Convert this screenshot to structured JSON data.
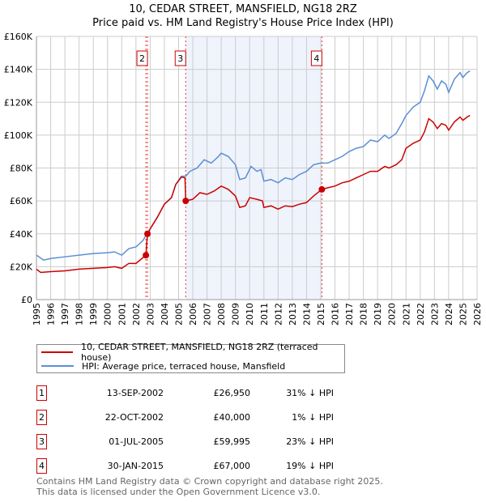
{
  "title": "10, CEDAR STREET, MANSFIELD, NG18 2RZ",
  "subtitle": "Price paid vs. HM Land Registry's House Price Index (HPI)",
  "colors": {
    "property": "#cc0000",
    "hpi": "#5b8fd4",
    "shade": "#eef3fc",
    "grid": "#cccccc"
  },
  "chart_data": {
    "type": "line",
    "title": "10, CEDAR STREET, MANSFIELD, NG18 2RZ",
    "xlim": [
      1995,
      2026
    ],
    "ylim": [
      0,
      160000
    ],
    "y_ticks": [
      {
        "v": 0,
        "label": "£0"
      },
      {
        "v": 20000,
        "label": "£20K"
      },
      {
        "v": 40000,
        "label": "£40K"
      },
      {
        "v": 60000,
        "label": "£60K"
      },
      {
        "v": 80000,
        "label": "£80K"
      },
      {
        "v": 100000,
        "label": "£100K"
      },
      {
        "v": 120000,
        "label": "£120K"
      },
      {
        "v": 140000,
        "label": "£140K"
      },
      {
        "v": 160000,
        "label": "£160K"
      }
    ],
    "x_ticks": [
      "1995",
      "1996",
      "1997",
      "1998",
      "1999",
      "2000",
      "2001",
      "2002",
      "2003",
      "2004",
      "2005",
      "2006",
      "2007",
      "2008",
      "2009",
      "2010",
      "2011",
      "2012",
      "2013",
      "2014",
      "2015",
      "2016",
      "2017",
      "2018",
      "2019",
      "2020",
      "2021",
      "2022",
      "2023",
      "2024",
      "2025",
      "2026"
    ],
    "shaded_range": [
      2005.5,
      2015.08
    ],
    "forecast_from": 2025.0,
    "series": [
      {
        "name": "10, CEDAR STREET, MANSFIELD, NG18 2RZ (terraced house)",
        "color": "#cc0000",
        "x": [
          1995,
          1995.3,
          1996,
          1997,
          1998,
          1999,
          2000,
          2000.5,
          2001,
          2001.5,
          2002,
          2002.7,
          2002.81,
          2003,
          2003.5,
          2004,
          2004.5,
          2004.8,
          2005.2,
          2005.45,
          2005.5,
          2006,
          2006.5,
          2007,
          2007.5,
          2008,
          2008.5,
          2009,
          2009.3,
          2009.7,
          2010,
          2010.5,
          2010.9,
          2011,
          2011.5,
          2012,
          2012.5,
          2013,
          2013.5,
          2014,
          2014.5,
          2015.08,
          2015.5,
          2016,
          2016.5,
          2017,
          2017.5,
          2018,
          2018.5,
          2019,
          2019.5,
          2019.8,
          2020.3,
          2020.7,
          2021,
          2021.5,
          2022,
          2022.3,
          2022.6,
          2022.9,
          2023.2,
          2023.5,
          2023.8,
          2024,
          2024.4,
          2024.8,
          2025,
          2025.3,
          2025.5
        ],
        "y": [
          18500,
          16500,
          17000,
          17500,
          18500,
          19000,
          19500,
          20000,
          19000,
          22000,
          22000,
          26950,
          40000,
          43000,
          50000,
          58000,
          62000,
          70000,
          74500,
          74000,
          59995,
          61000,
          65000,
          64000,
          66000,
          69000,
          67000,
          63000,
          56000,
          57000,
          62000,
          61000,
          60000,
          56000,
          57000,
          55000,
          57000,
          56500,
          58000,
          59000,
          63000,
          67000,
          68000,
          69000,
          71000,
          72000,
          74000,
          76000,
          78000,
          78000,
          81000,
          80000,
          82000,
          85000,
          92000,
          95000,
          97000,
          102000,
          110000,
          108000,
          104000,
          107000,
          106000,
          103000,
          108000,
          111000,
          109000,
          111000,
          112000
        ]
      },
      {
        "name": "HPI: Average price, terraced house, Mansfield",
        "color": "#5b8fd4",
        "x": [
          1995,
          1995.5,
          1996,
          1997,
          1998,
          1999,
          2000,
          2000.5,
          2001,
          2001.5,
          2002,
          2002.5,
          2002.8,
          2003,
          2003.5,
          2004,
          2004.5,
          2004.8,
          2005.2,
          2005.5,
          2005.8,
          2006.3,
          2006.8,
          2007.3,
          2007.8,
          2008,
          2008.5,
          2009,
          2009.3,
          2009.7,
          2010.1,
          2010.5,
          2010.8,
          2011,
          2011.5,
          2012,
          2012.5,
          2013,
          2013.5,
          2014,
          2014.5,
          2015,
          2015.5,
          2016,
          2016.5,
          2017,
          2017.5,
          2018,
          2018.5,
          2019,
          2019.5,
          2019.8,
          2020.3,
          2020.7,
          2021,
          2021.5,
          2022,
          2022.3,
          2022.6,
          2022.9,
          2023.2,
          2023.5,
          2023.8,
          2024,
          2024.4,
          2024.8,
          2025,
          2025.3,
          2025.5
        ],
        "y": [
          27000,
          24000,
          25000,
          26000,
          27000,
          28000,
          28500,
          29000,
          27000,
          31000,
          32000,
          36000,
          40500,
          43000,
          50000,
          58000,
          62000,
          70000,
          75000,
          75000,
          78000,
          80000,
          85000,
          83000,
          87000,
          89000,
          87000,
          82000,
          73000,
          74000,
          81000,
          78000,
          79000,
          72000,
          73000,
          71000,
          74000,
          73000,
          76000,
          78000,
          82000,
          83000,
          83000,
          85000,
          87000,
          90000,
          92000,
          93000,
          97000,
          96000,
          100000,
          98000,
          101000,
          107000,
          112000,
          117000,
          120000,
          127000,
          136000,
          133000,
          128000,
          133000,
          131000,
          126000,
          134000,
          138000,
          135000,
          138000,
          139000
        ]
      }
    ],
    "sales": [
      {
        "id": "1",
        "x": 2002.7,
        "y": 26950,
        "show_label": false
      },
      {
        "id": "2",
        "x": 2002.81,
        "y": 40000,
        "show_label": true
      },
      {
        "id": "3",
        "x": 2005.5,
        "y": 59995,
        "show_label": true
      },
      {
        "id": "4",
        "x": 2015.08,
        "y": 67000,
        "show_label": true
      }
    ]
  },
  "legend": {
    "property": "10, CEDAR STREET, MANSFIELD, NG18 2RZ (terraced house)",
    "hpi": "HPI: Average price, terraced house, Mansfield"
  },
  "transactions": [
    {
      "num": "1",
      "date": "13-SEP-2002",
      "price": "£26,950",
      "hpi": "31% ↓ HPI"
    },
    {
      "num": "2",
      "date": "22-OCT-2002",
      "price": "£40,000",
      "hpi": "1% ↓ HPI"
    },
    {
      "num": "3",
      "date": "01-JUL-2005",
      "price": "£59,995",
      "hpi": "23% ↓ HPI"
    },
    {
      "num": "4",
      "date": "30-JAN-2015",
      "price": "£67,000",
      "hpi": "19% ↓ HPI"
    }
  ],
  "footer": {
    "line1": "Contains HM Land Registry data © Crown copyright and database right 2025.",
    "line2": "This data is licensed under the Open Government Licence v3.0."
  }
}
